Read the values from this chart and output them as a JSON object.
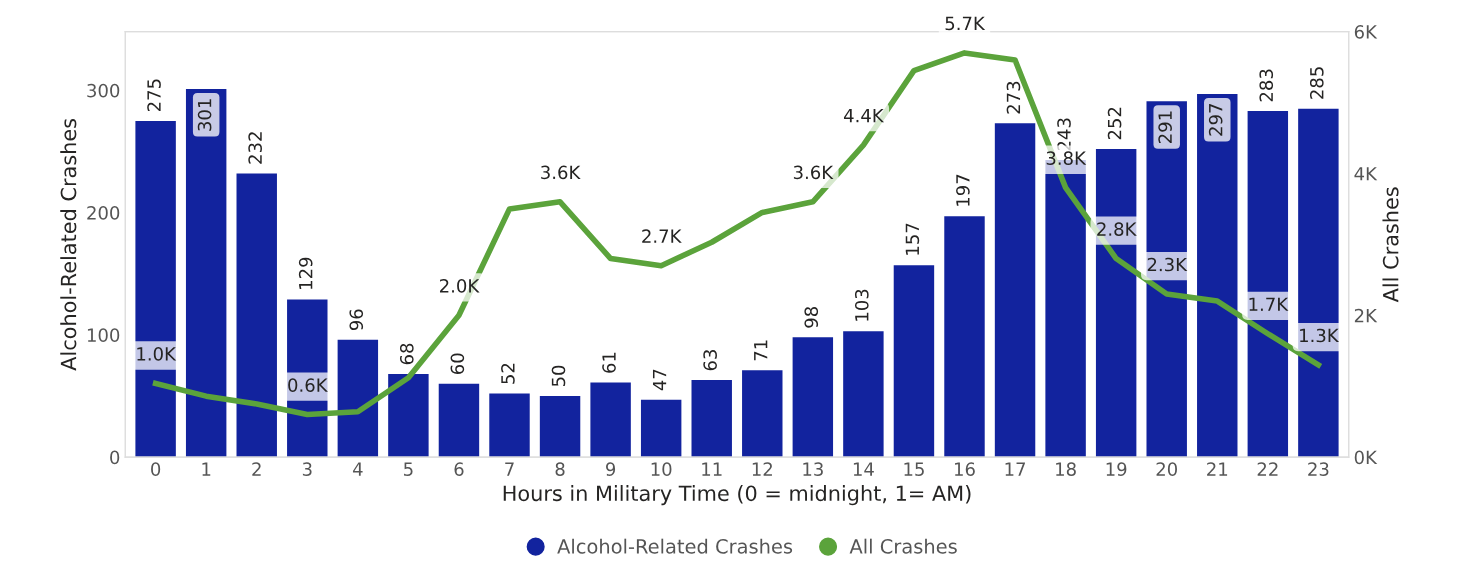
{
  "chart_data": {
    "type": "bar",
    "xlabel": "Hours in Military Time (0 = midnight, 1= AM)",
    "ylabel": "Alcohol-Related Crashes",
    "y2label": "All Crashes",
    "categories": [
      "0",
      "1",
      "2",
      "3",
      "4",
      "5",
      "6",
      "7",
      "8",
      "9",
      "10",
      "11",
      "12",
      "13",
      "14",
      "15",
      "16",
      "17",
      "18",
      "19",
      "20",
      "21",
      "22",
      "23"
    ],
    "series": [
      {
        "name": "Alcohol-Related Crashes",
        "color": "#12239e",
        "values": [
          275,
          301,
          232,
          129,
          96,
          68,
          60,
          52,
          50,
          61,
          47,
          63,
          71,
          98,
          103,
          157,
          197,
          273,
          243,
          252,
          291,
          297,
          283,
          285
        ],
        "data_labels": true
      },
      {
        "name": "All Crashes",
        "type": "line",
        "axis": "y2",
        "color": "#5ba33b",
        "marker": "none",
        "line_style": "solid",
        "values": [
          1.04,
          0.86,
          0.75,
          0.6,
          0.64,
          1.12,
          2.0,
          3.5,
          3.6,
          2.8,
          2.7,
          3.03,
          3.45,
          3.6,
          4.4,
          5.45,
          5.7,
          5.6,
          3.8,
          2.8,
          2.3,
          2.2,
          1.74,
          1.3
        ],
        "value_labels": [
          "1.0K",
          null,
          null,
          "0.6K",
          null,
          null,
          "2.0K",
          null,
          "3.6K",
          null,
          "2.7K",
          null,
          null,
          "3.6K",
          "4.4K",
          null,
          "5.7K",
          null,
          "3.8K",
          "2.8K",
          "2.3K",
          null,
          "1.7K",
          "1.3K"
        ]
      }
    ],
    "ylim": [
      0,
      348
    ],
    "yticks": [
      0,
      100,
      200,
      300
    ],
    "y2lim": [
      0,
      6
    ],
    "y2ticks": [
      {
        "value": 0,
        "label": "0K"
      },
      {
        "value": 2,
        "label": "2K"
      },
      {
        "value": 4,
        "label": "4K"
      },
      {
        "value": 6,
        "label": "6K"
      }
    ],
    "grid": false,
    "legend": "bottom"
  }
}
